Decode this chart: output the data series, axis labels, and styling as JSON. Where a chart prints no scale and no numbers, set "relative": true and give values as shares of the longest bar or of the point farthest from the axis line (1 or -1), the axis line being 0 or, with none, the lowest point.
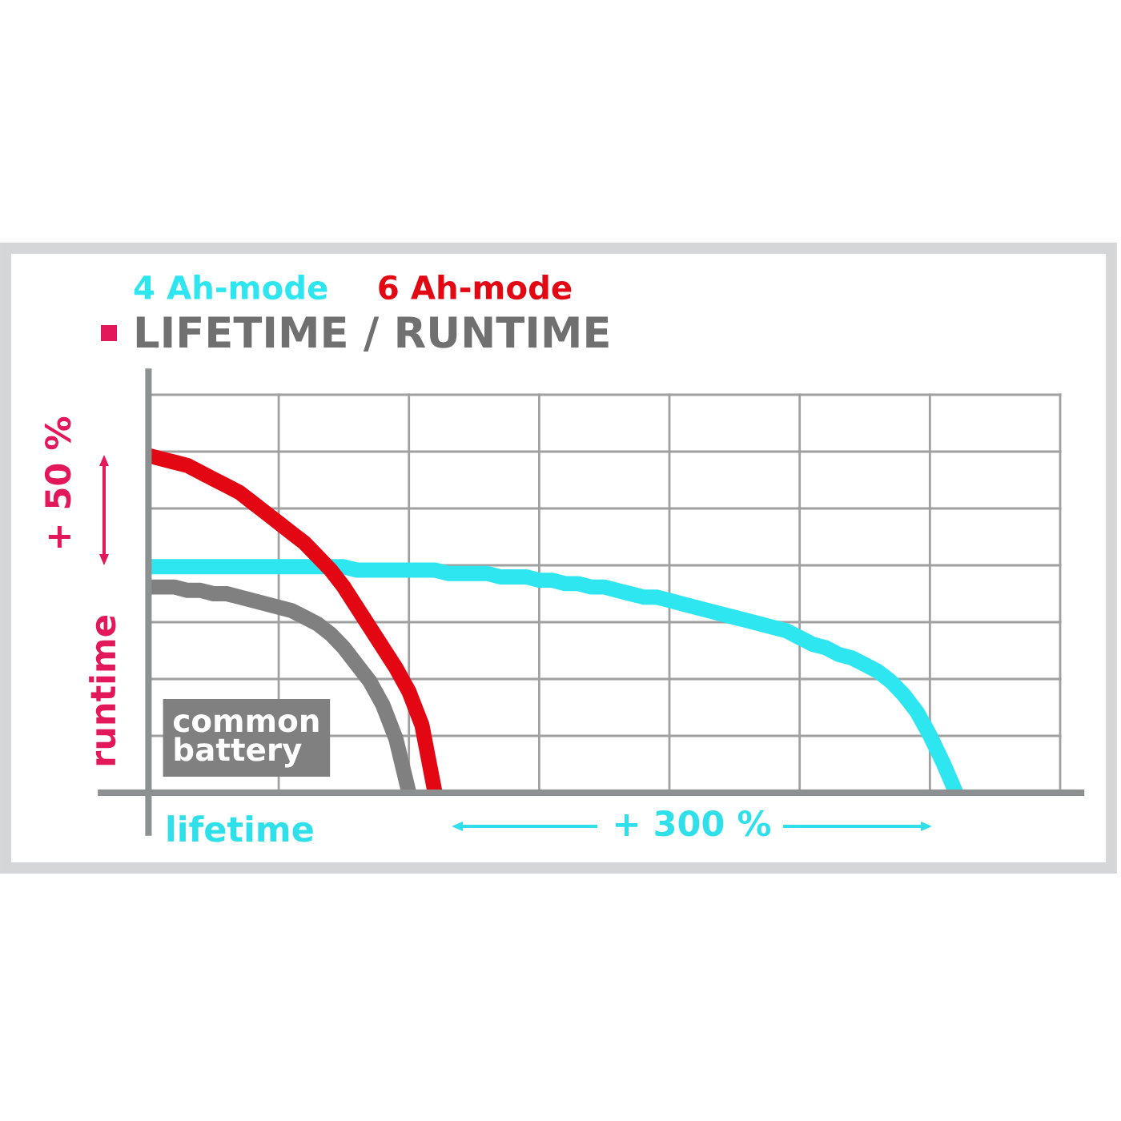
{
  "chart_data": {
    "type": "line",
    "title": "LIFETIME / RUNTIME",
    "xlabel": "lifetime",
    "ylabel": "runtime",
    "annotations": [
      "+ 50 %",
      "+ 300 %"
    ],
    "relative": true,
    "legend": "top left",
    "grid": true,
    "categories": [
      null,
      null,
      null,
      null,
      null,
      null,
      null,
      null,
      null,
      null,
      null,
      null,
      null,
      null,
      null,
      null,
      null,
      null,
      null,
      null,
      null,
      null,
      null,
      null,
      null,
      null,
      null,
      null,
      null,
      null,
      null,
      null,
      null,
      null,
      null,
      null,
      null,
      null,
      null,
      null,
      null,
      null,
      null,
      null,
      null,
      null,
      null,
      null,
      null,
      null,
      null,
      null,
      null,
      null,
      null,
      null,
      null,
      null,
      null,
      null,
      null,
      null,
      null,
      null,
      null,
      null,
      null,
      null,
      null,
      null,
      null
    ],
    "series": [
      {
        "name": "4 Ah-mode",
        "color": "#2ee6f0",
        "values": [
          0.67,
          0.67,
          0.67,
          0.67,
          0.67,
          0.67,
          0.67,
          0.67,
          0.67,
          0.67,
          0.67,
          0.67,
          0.67,
          0.67,
          0.67,
          0.67,
          0.66,
          0.66,
          0.66,
          0.66,
          0.66,
          0.66,
          0.66,
          0.65,
          0.65,
          0.65,
          0.65,
          0.64,
          0.64,
          0.64,
          0.63,
          0.63,
          0.62,
          0.62,
          0.61,
          0.61,
          0.6,
          0.59,
          0.58,
          0.58,
          0.57,
          0.56,
          0.55,
          0.54,
          0.53,
          0.52,
          0.51,
          0.5,
          0.49,
          0.48,
          0.46,
          0.44,
          0.43,
          0.41,
          0.4,
          0.38,
          0.36,
          0.33,
          0.29,
          0.24,
          0.17,
          0.09,
          0,
          null,
          null,
          null,
          null,
          null,
          null,
          null,
          null
        ]
      },
      {
        "name": "6 Ah-mode",
        "color": "#e30613",
        "values": [
          1.0,
          0.99,
          0.98,
          0.97,
          0.95,
          0.93,
          0.91,
          0.89,
          0.86,
          0.83,
          0.8,
          0.77,
          0.74,
          0.7,
          0.66,
          0.61,
          0.55,
          0.49,
          0.43,
          0.37,
          0.3,
          0.2,
          0,
          null,
          null,
          null,
          null,
          null,
          null,
          null,
          null,
          null,
          null,
          null,
          null,
          null,
          null,
          null,
          null,
          null,
          null,
          null,
          null,
          null,
          null,
          null,
          null,
          null,
          null,
          null,
          null,
          null,
          null,
          null,
          null,
          null,
          null,
          null,
          null,
          null,
          null,
          null,
          null,
          null,
          null,
          null,
          null,
          null,
          null,
          null,
          null
        ]
      },
      {
        "name": "common battery",
        "color": "#808080",
        "values": [
          0.61,
          0.61,
          0.61,
          0.6,
          0.6,
          0.59,
          0.59,
          0.58,
          0.57,
          0.56,
          0.55,
          0.54,
          0.52,
          0.5,
          0.47,
          0.43,
          0.38,
          0.33,
          0.26,
          0.16,
          0,
          null,
          null,
          null,
          null,
          null,
          null,
          null,
          null,
          null,
          null,
          null,
          null,
          null,
          null,
          null,
          null,
          null,
          null,
          null,
          null,
          null,
          null,
          null,
          null,
          null,
          null,
          null,
          null,
          null,
          null,
          null,
          null,
          null,
          null,
          null,
          null,
          null,
          null,
          null,
          null,
          null,
          null,
          null,
          null,
          null,
          null,
          null,
          null,
          null,
          null
        ]
      }
    ]
  }
}
